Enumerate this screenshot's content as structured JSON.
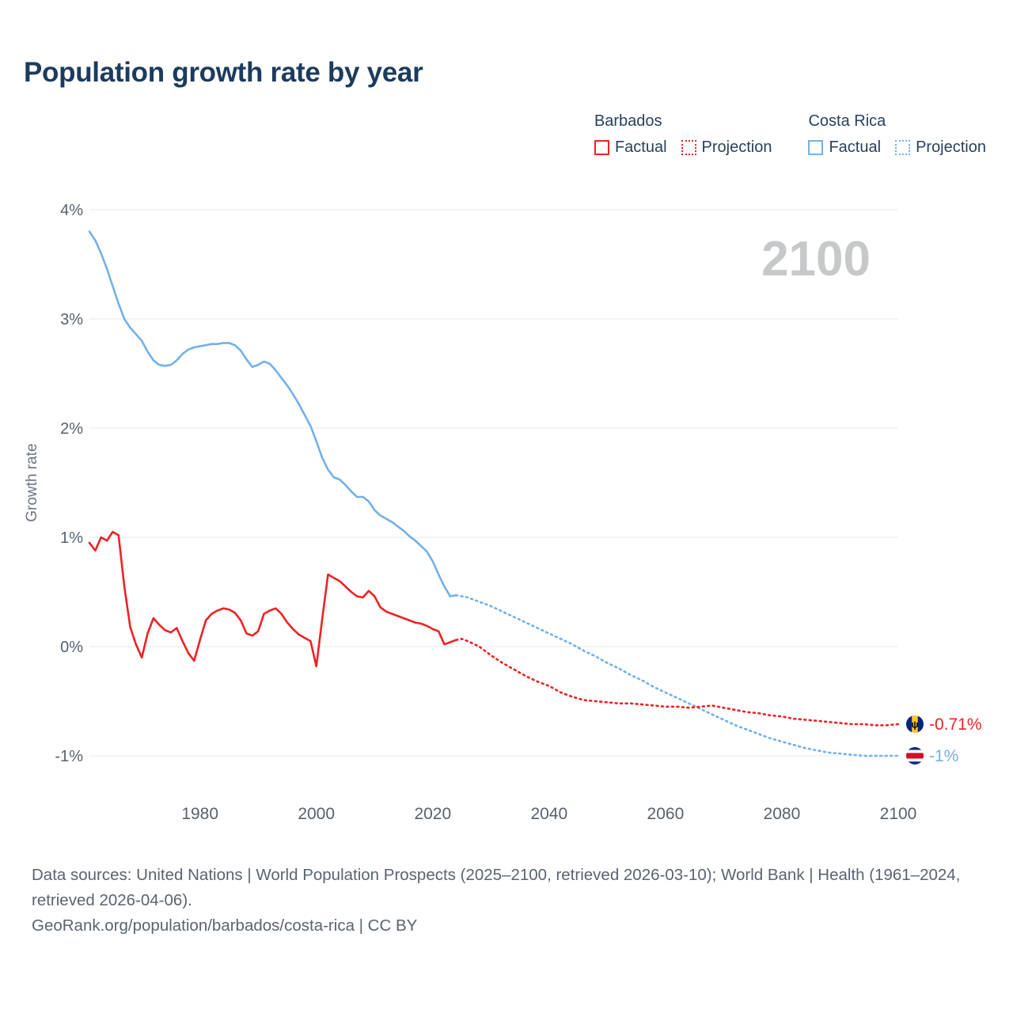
{
  "title": "Population growth rate by year",
  "watermark": "2100",
  "legend": {
    "groups": [
      {
        "country": "Barbados",
        "color": "#ed2224",
        "items": [
          {
            "label": "Factual",
            "style": "solid"
          },
          {
            "label": "Projection",
            "style": "dotted"
          }
        ]
      },
      {
        "country": "Costa Rica",
        "color": "#74b0e8",
        "items": [
          {
            "label": "Factual",
            "style": "solid"
          },
          {
            "label": "Projection",
            "style": "dotted"
          }
        ]
      }
    ]
  },
  "end_labels": [
    {
      "id": "barbados",
      "country": "Barbados",
      "value_label": "-0.71%",
      "value": -0.71,
      "color": "#ed2224"
    },
    {
      "id": "costa-rica",
      "country": "Costa Rica",
      "value_label": "-1%",
      "value": -1.0,
      "color": "#74b0e8"
    }
  ],
  "footer": {
    "sources": "Data sources: United Nations | World Population Prospects (2025–2100, retrieved 2026-03-10); World Bank | Health (1961–2024, retrieved 2026-04-06).",
    "attribution": "GeoRank.org/population/barbados/costa-rica | CC BY"
  },
  "colors": {
    "barbados": "#ed2224",
    "costa_rica": "#74b0e8",
    "grid": "#e7e9eb",
    "tick_text": "#57626e",
    "title": "#1d3b5d",
    "watermark": "#c6c8ca",
    "footer_text": "#5a6470",
    "barbados_flag_blue": "#00267f",
    "barbados_flag_yellow": "#ffc726",
    "costa_rica_flag_blue": "#002b7f",
    "costa_rica_flag_red": "#ce1126"
  },
  "chart_data": {
    "type": "line",
    "title": "Population growth rate by year",
    "xlabel": "",
    "ylabel": "Growth rate",
    "xlim": [
      1961,
      2100
    ],
    "ylim": [
      -1,
      4
    ],
    "x_ticks": [
      1980,
      2000,
      2020,
      2040,
      2060,
      2080,
      2100
    ],
    "y_ticks_pct": [
      4,
      3,
      2,
      1,
      0,
      -1
    ],
    "y_tick_labels": [
      "4%",
      "3%",
      "2%",
      "1%",
      "0%",
      "-1%"
    ],
    "grid": "horizontal",
    "legend_position": "top-right",
    "series": [
      {
        "id": "costa-rica-factual",
        "name": "Costa Rica Factual",
        "color": "#74b0e8",
        "dash": "solid",
        "points": [
          [
            1961,
            3.8
          ],
          [
            1962,
            3.72
          ],
          [
            1963,
            3.6
          ],
          [
            1964,
            3.46
          ],
          [
            1965,
            3.3
          ],
          [
            1966,
            3.14
          ],
          [
            1967,
            3.0
          ],
          [
            1968,
            2.92
          ],
          [
            1969,
            2.86
          ],
          [
            1970,
            2.8
          ],
          [
            1971,
            2.7
          ],
          [
            1972,
            2.62
          ],
          [
            1973,
            2.58
          ],
          [
            1974,
            2.57
          ],
          [
            1975,
            2.58
          ],
          [
            1976,
            2.62
          ],
          [
            1977,
            2.68
          ],
          [
            1978,
            2.72
          ],
          [
            1979,
            2.74
          ],
          [
            1980,
            2.75
          ],
          [
            1981,
            2.76
          ],
          [
            1982,
            2.77
          ],
          [
            1983,
            2.77
          ],
          [
            1984,
            2.78
          ],
          [
            1985,
            2.78
          ],
          [
            1986,
            2.76
          ],
          [
            1987,
            2.71
          ],
          [
            1988,
            2.63
          ],
          [
            1989,
            2.56
          ],
          [
            1990,
            2.58
          ],
          [
            1991,
            2.61
          ],
          [
            1992,
            2.59
          ],
          [
            1993,
            2.53
          ],
          [
            1994,
            2.46
          ],
          [
            1995,
            2.39
          ],
          [
            1996,
            2.31
          ],
          [
            1997,
            2.22
          ],
          [
            1998,
            2.12
          ],
          [
            1999,
            2.02
          ],
          [
            2000,
            1.88
          ],
          [
            2001,
            1.73
          ],
          [
            2002,
            1.62
          ],
          [
            2003,
            1.55
          ],
          [
            2004,
            1.53
          ],
          [
            2005,
            1.48
          ],
          [
            2006,
            1.42
          ],
          [
            2007,
            1.37
          ],
          [
            2008,
            1.37
          ],
          [
            2009,
            1.33
          ],
          [
            2010,
            1.25
          ],
          [
            2011,
            1.2
          ],
          [
            2012,
            1.17
          ],
          [
            2013,
            1.14
          ],
          [
            2014,
            1.1
          ],
          [
            2015,
            1.06
          ],
          [
            2016,
            1.01
          ],
          [
            2017,
            0.97
          ],
          [
            2018,
            0.92
          ],
          [
            2019,
            0.87
          ],
          [
            2020,
            0.78
          ],
          [
            2021,
            0.66
          ],
          [
            2022,
            0.55
          ],
          [
            2023,
            0.46
          ],
          [
            2024,
            0.47
          ]
        ]
      },
      {
        "id": "costa-rica-projection",
        "name": "Costa Rica Projection",
        "color": "#74b0e8",
        "dash": "dotted",
        "points": [
          [
            2024,
            0.47
          ],
          [
            2026,
            0.45
          ],
          [
            2028,
            0.41
          ],
          [
            2030,
            0.37
          ],
          [
            2032,
            0.32
          ],
          [
            2034,
            0.27
          ],
          [
            2036,
            0.22
          ],
          [
            2038,
            0.17
          ],
          [
            2040,
            0.12
          ],
          [
            2042,
            0.07
          ],
          [
            2044,
            0.02
          ],
          [
            2046,
            -0.04
          ],
          [
            2048,
            -0.09
          ],
          [
            2050,
            -0.15
          ],
          [
            2052,
            -0.2
          ],
          [
            2054,
            -0.26
          ],
          [
            2056,
            -0.31
          ],
          [
            2058,
            -0.37
          ],
          [
            2060,
            -0.42
          ],
          [
            2062,
            -0.47
          ],
          [
            2064,
            -0.52
          ],
          [
            2066,
            -0.57
          ],
          [
            2068,
            -0.62
          ],
          [
            2070,
            -0.67
          ],
          [
            2072,
            -0.72
          ],
          [
            2074,
            -0.76
          ],
          [
            2076,
            -0.8
          ],
          [
            2078,
            -0.84
          ],
          [
            2080,
            -0.87
          ],
          [
            2082,
            -0.9
          ],
          [
            2084,
            -0.93
          ],
          [
            2086,
            -0.95
          ],
          [
            2088,
            -0.97
          ],
          [
            2090,
            -0.98
          ],
          [
            2092,
            -0.99
          ],
          [
            2094,
            -1.0
          ],
          [
            2096,
            -1.0
          ],
          [
            2098,
            -1.0
          ],
          [
            2100,
            -1.0
          ]
        ]
      },
      {
        "id": "barbados-factual",
        "name": "Barbados Factual",
        "color": "#ed2224",
        "dash": "solid",
        "points": [
          [
            1961,
            0.95
          ],
          [
            1962,
            0.88
          ],
          [
            1963,
            1.0
          ],
          [
            1964,
            0.97
          ],
          [
            1965,
            1.05
          ],
          [
            1966,
            1.02
          ],
          [
            1967,
            0.55
          ],
          [
            1968,
            0.18
          ],
          [
            1969,
            0.02
          ],
          [
            1970,
            -0.1
          ],
          [
            1971,
            0.12
          ],
          [
            1972,
            0.26
          ],
          [
            1973,
            0.2
          ],
          [
            1974,
            0.15
          ],
          [
            1975,
            0.13
          ],
          [
            1976,
            0.17
          ],
          [
            1977,
            0.05
          ],
          [
            1978,
            -0.06
          ],
          [
            1979,
            -0.13
          ],
          [
            1980,
            0.06
          ],
          [
            1981,
            0.24
          ],
          [
            1982,
            0.3
          ],
          [
            1983,
            0.33
          ],
          [
            1984,
            0.35
          ],
          [
            1985,
            0.34
          ],
          [
            1986,
            0.31
          ],
          [
            1987,
            0.24
          ],
          [
            1988,
            0.12
          ],
          [
            1989,
            0.1
          ],
          [
            1990,
            0.14
          ],
          [
            1991,
            0.3
          ],
          [
            1992,
            0.33
          ],
          [
            1993,
            0.35
          ],
          [
            1994,
            0.3
          ],
          [
            1995,
            0.22
          ],
          [
            1996,
            0.16
          ],
          [
            1997,
            0.11
          ],
          [
            1998,
            0.08
          ],
          [
            1999,
            0.05
          ],
          [
            2000,
            -0.18
          ],
          [
            2001,
            0.25
          ],
          [
            2002,
            0.66
          ],
          [
            2003,
            0.63
          ],
          [
            2004,
            0.6
          ],
          [
            2005,
            0.55
          ],
          [
            2006,
            0.5
          ],
          [
            2007,
            0.46
          ],
          [
            2008,
            0.45
          ],
          [
            2009,
            0.51
          ],
          [
            2010,
            0.46
          ],
          [
            2011,
            0.36
          ],
          [
            2012,
            0.32
          ],
          [
            2013,
            0.3
          ],
          [
            2014,
            0.28
          ],
          [
            2015,
            0.26
          ],
          [
            2016,
            0.24
          ],
          [
            2017,
            0.22
          ],
          [
            2018,
            0.21
          ],
          [
            2019,
            0.19
          ],
          [
            2020,
            0.16
          ],
          [
            2021,
            0.14
          ],
          [
            2022,
            0.02
          ],
          [
            2023,
            0.04
          ],
          [
            2024,
            0.06
          ]
        ]
      },
      {
        "id": "barbados-projection",
        "name": "Barbados Projection",
        "color": "#ed2224",
        "dash": "dotted",
        "points": [
          [
            2024,
            0.06
          ],
          [
            2025,
            0.07
          ],
          [
            2026,
            0.05
          ],
          [
            2028,
            0.0
          ],
          [
            2030,
            -0.08
          ],
          [
            2032,
            -0.15
          ],
          [
            2034,
            -0.21
          ],
          [
            2036,
            -0.27
          ],
          [
            2038,
            -0.32
          ],
          [
            2040,
            -0.36
          ],
          [
            2042,
            -0.42
          ],
          [
            2044,
            -0.46
          ],
          [
            2046,
            -0.49
          ],
          [
            2048,
            -0.5
          ],
          [
            2050,
            -0.51
          ],
          [
            2052,
            -0.52
          ],
          [
            2054,
            -0.52
          ],
          [
            2056,
            -0.53
          ],
          [
            2058,
            -0.54
          ],
          [
            2060,
            -0.55
          ],
          [
            2062,
            -0.55
          ],
          [
            2064,
            -0.56
          ],
          [
            2066,
            -0.55
          ],
          [
            2068,
            -0.54
          ],
          [
            2070,
            -0.56
          ],
          [
            2072,
            -0.58
          ],
          [
            2074,
            -0.6
          ],
          [
            2076,
            -0.61
          ],
          [
            2078,
            -0.63
          ],
          [
            2080,
            -0.64
          ],
          [
            2082,
            -0.66
          ],
          [
            2084,
            -0.67
          ],
          [
            2086,
            -0.68
          ],
          [
            2088,
            -0.69
          ],
          [
            2090,
            -0.7
          ],
          [
            2092,
            -0.71
          ],
          [
            2094,
            -0.71
          ],
          [
            2096,
            -0.72
          ],
          [
            2098,
            -0.72
          ],
          [
            2100,
            -0.71
          ]
        ]
      }
    ]
  }
}
